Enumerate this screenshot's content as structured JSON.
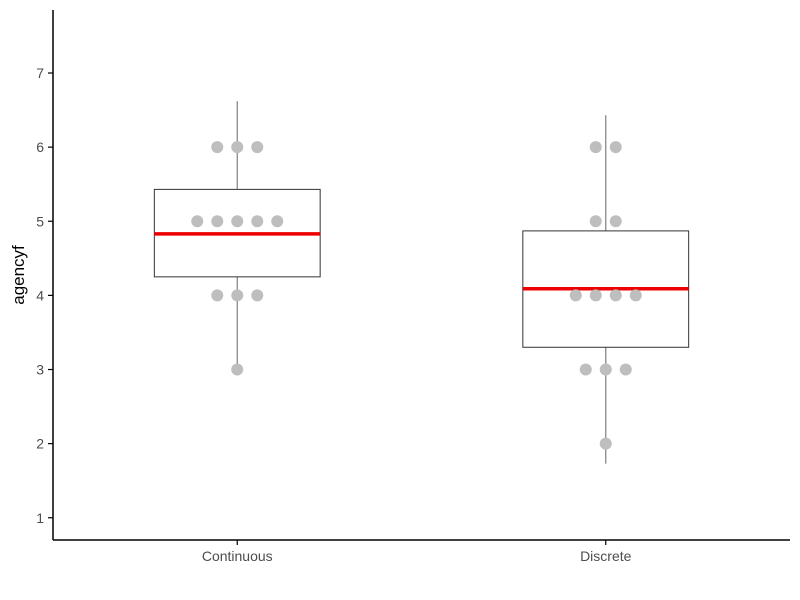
{
  "chart_data": {
    "type": "box",
    "title": "",
    "xlabel": "",
    "ylabel": "agencyf",
    "ylim": [
      0.7,
      7.85
    ],
    "yticks": [
      1,
      2,
      3,
      4,
      5,
      6,
      7
    ],
    "grid": false,
    "legend": "none",
    "categories": [
      "Continuous",
      "Discrete"
    ],
    "boxes": [
      {
        "category": "Continuous",
        "q1": 4.25,
        "q3": 5.43,
        "mean_line": 4.83,
        "whisker_low": 3.0,
        "whisker_high": 6.62
      },
      {
        "category": "Discrete",
        "q1": 3.3,
        "q3": 4.87,
        "mean_line": 4.09,
        "whisker_low": 1.73,
        "whisker_high": 6.43
      }
    ],
    "points": [
      {
        "category": "Continuous",
        "values": [
          3,
          4,
          4,
          4,
          5,
          5,
          5,
          5,
          5,
          6,
          6,
          6
        ]
      },
      {
        "category": "Discrete",
        "values": [
          2,
          3,
          3,
          3,
          4,
          4,
          4,
          4,
          5,
          5,
          6,
          6
        ]
      }
    ],
    "colors": {
      "box_border": "#333333",
      "box_fill": "#ffffff",
      "whisker": "#7f7f7f",
      "mean_line": "#ee0000",
      "points": "#bebebe",
      "axis": "#000000"
    }
  }
}
